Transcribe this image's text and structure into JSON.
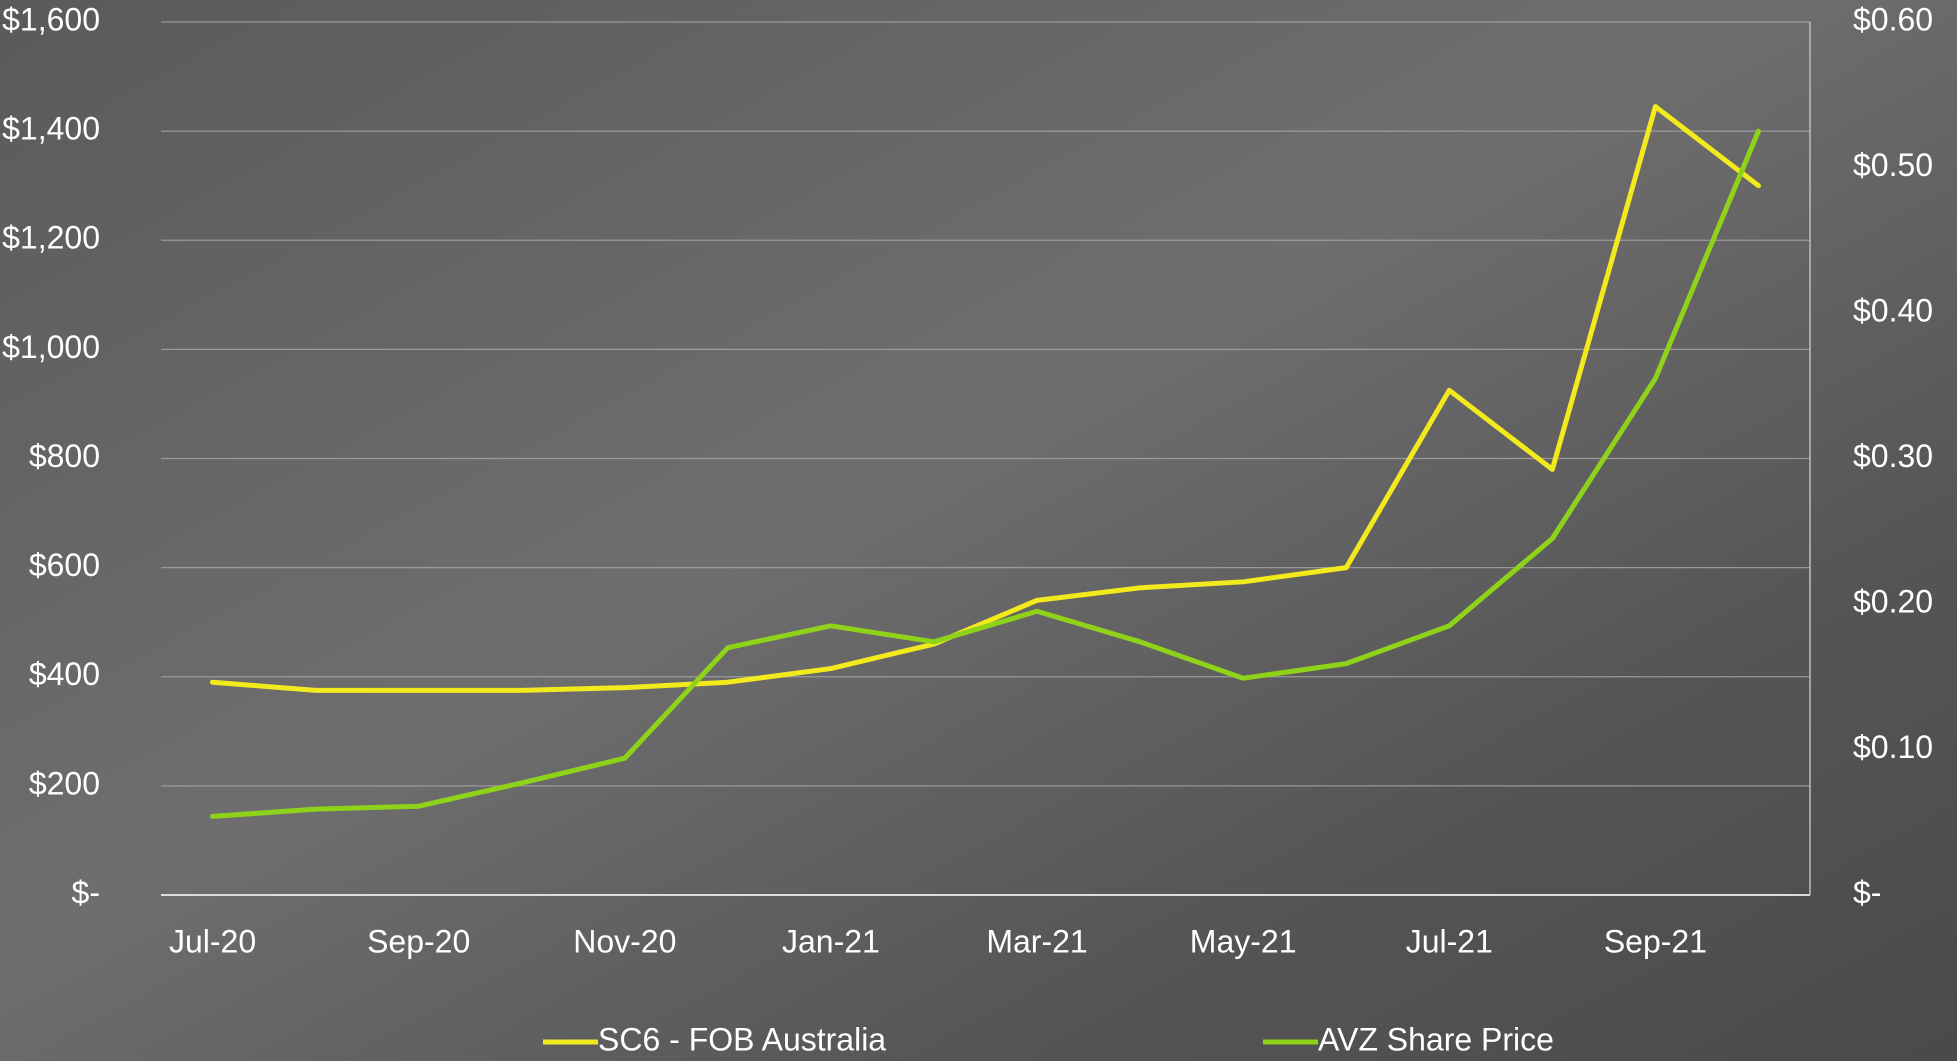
{
  "chart_data": {
    "type": "line",
    "categories": [
      "Jul-20",
      null,
      "Sep-20",
      null,
      "Nov-20",
      null,
      "Jan-21",
      null,
      "Mar-21",
      null,
      "May-21",
      null,
      "Jul-21",
      null,
      "Sep-21",
      null
    ],
    "series": [
      {
        "name": "SC6 - FOB Australia",
        "color": "#f2ea1c",
        "values": [
          390,
          375,
          375,
          375,
          380,
          390,
          415,
          460,
          540,
          563,
          574,
          600,
          925,
          780,
          1445,
          1300
        ]
      },
      {
        "name": "AVZ Share Price",
        "color": "#8fd21a",
        "axis": "y2",
        "values": [
          0.054,
          0.059,
          0.061,
          0.077,
          0.094,
          0.17,
          0.185,
          0.174,
          0.195,
          0.174,
          0.149,
          0.159,
          0.185,
          0.245,
          0.355,
          0.525
        ]
      }
    ],
    "ylim": [
      0,
      1600
    ],
    "yticks": [
      {
        "value": 0,
        "label": "$-"
      },
      {
        "value": 200,
        "label": "$200"
      },
      {
        "value": 400,
        "label": "$400"
      },
      {
        "value": 600,
        "label": "$600"
      },
      {
        "value": 800,
        "label": "$800"
      },
      {
        "value": 1000,
        "label": "$1,000"
      },
      {
        "value": 1200,
        "label": "$1,200"
      },
      {
        "value": 1400,
        "label": "$1,400"
      },
      {
        "value": 1600,
        "label": "$1,600"
      }
    ],
    "y2lim": [
      0,
      0.6
    ],
    "y2ticks": [
      {
        "value": 0,
        "label": "$-"
      },
      {
        "value": 0.1,
        "label": "$0.10"
      },
      {
        "value": 0.2,
        "label": "$0.20"
      },
      {
        "value": 0.3,
        "label": "$0.30"
      },
      {
        "value": 0.4,
        "label": "$0.40"
      },
      {
        "value": 0.5,
        "label": "$0.50"
      },
      {
        "value": 0.6,
        "label": "$0.60"
      }
    ],
    "grid": true,
    "legend": "bottom"
  }
}
